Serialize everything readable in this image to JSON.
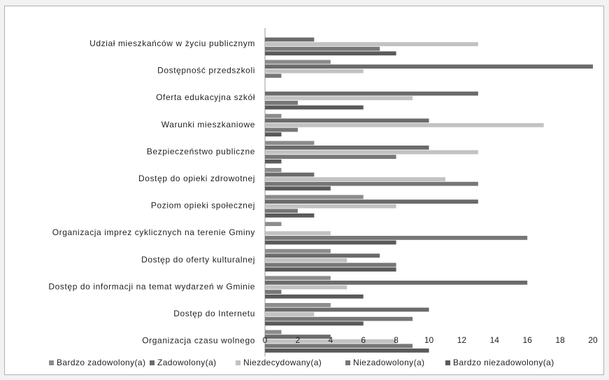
{
  "chart_data": {
    "type": "bar",
    "orientation": "horizontal",
    "title": "",
    "xlabel": "",
    "ylabel": "",
    "xlim": [
      0,
      20
    ],
    "x_ticks": [
      "0",
      "2",
      "4",
      "6",
      "8",
      "10",
      "12",
      "14",
      "16",
      "18",
      "20"
    ],
    "grid": false,
    "legend_position": "bottom",
    "categories": [
      "Udział mieszkańców w życiu publicznym",
      "Dostępność przedszkoli",
      "Oferta edukacyjna szkół",
      "Warunki mieszkaniowe",
      "Bezpieczeństwo publiczne",
      "Dostęp do opieki zdrowotnej",
      "Poziom opieki społecznej",
      "Organizacja imprez cyklicznych na terenie Gminy",
      "Dostęp do oferty kulturalnej",
      "Dostęp do informacji na temat wydarzeń w Gminie",
      "Dostęp do Internetu",
      "Organizacja czasu wolnego"
    ],
    "series": [
      {
        "name": "Bardzo zadowolony(a)",
        "color": "#8c8c8c",
        "values": [
          0,
          4,
          0,
          1,
          3,
          1,
          6,
          1,
          4,
          4,
          4,
          1
        ]
      },
      {
        "name": "Zadowolony(a)",
        "color": "#6b6b6b",
        "values": [
          3,
          20,
          13,
          10,
          10,
          3,
          13,
          0,
          7,
          16,
          10,
          4
        ]
      },
      {
        "name": "Niezdecydowany(a)",
        "color": "#c2c2c2",
        "values": [
          13,
          6,
          9,
          17,
          13,
          11,
          8,
          4,
          5,
          5,
          3,
          8
        ]
      },
      {
        "name": "Niezadowolony(a)",
        "color": "#777777",
        "values": [
          7,
          1,
          2,
          2,
          8,
          13,
          2,
          16,
          8,
          1,
          9,
          9
        ]
      },
      {
        "name": "Bardzo niezadowolony(a)",
        "color": "#5a5a5a",
        "values": [
          8,
          0,
          6,
          1,
          1,
          4,
          3,
          8,
          8,
          6,
          6,
          10
        ]
      }
    ]
  }
}
